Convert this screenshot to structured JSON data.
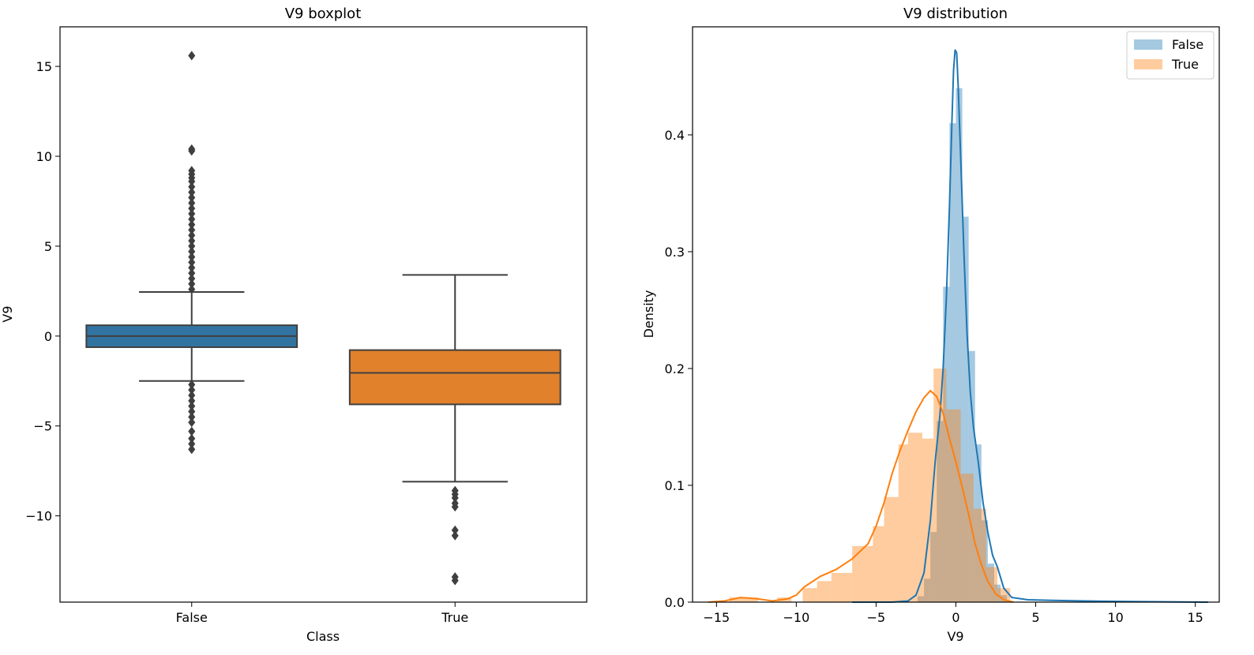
{
  "chart_data": [
    {
      "type": "box",
      "title": "V9 boxplot",
      "xlabel": "Class",
      "ylabel": "V9",
      "categories": [
        "False",
        "True"
      ],
      "ylim": [
        -14.8,
        17.2
      ],
      "yticks": [
        -10,
        -5,
        0,
        5,
        10,
        15
      ],
      "ytick_labels": [
        "−10",
        "−5",
        "0",
        "5",
        "10",
        "15"
      ],
      "colors": [
        "#3274a1",
        "#e1812c"
      ],
      "boxes": [
        {
          "name": "False",
          "q1": -0.62,
          "median": 0.0,
          "q3": 0.6,
          "whisker_low": -2.5,
          "whisker_high": 2.45,
          "outliers": [
            15.6,
            10.4,
            10.3,
            9.2,
            9.0,
            8.8,
            8.6,
            8.3,
            8.0,
            7.7,
            7.4,
            7.1,
            6.8,
            6.5,
            6.2,
            5.9,
            5.6,
            5.3,
            5.0,
            4.7,
            4.4,
            4.1,
            3.8,
            3.5,
            3.2,
            2.9,
            2.6,
            -2.7,
            -3.0,
            -3.3,
            -3.6,
            -3.9,
            -4.2,
            -4.5,
            -4.8,
            -5.3,
            -5.7,
            -6.0,
            -6.3
          ]
        },
        {
          "name": "True",
          "q1": -3.8,
          "median": -2.05,
          "q3": -0.78,
          "whisker_low": -8.1,
          "whisker_high": 3.4,
          "outliers": [
            -8.6,
            -8.8,
            -9.0,
            -9.3,
            -9.5,
            -10.8,
            -11.1,
            -13.4,
            -13.6
          ]
        }
      ]
    },
    {
      "type": "histogram+kde",
      "title": "V9 distribution",
      "xlabel": "V9",
      "ylabel": "Density",
      "xlim": [
        -16.5,
        16.5
      ],
      "ylim": [
        0,
        0.4925
      ],
      "xticks": [
        -15,
        -10,
        -5,
        0,
        5,
        10,
        15
      ],
      "xtick_labels": [
        "−15",
        "−10",
        "−5",
        "0",
        "5",
        "10",
        "15"
      ],
      "yticks": [
        0.0,
        0.1,
        0.2,
        0.3,
        0.4
      ],
      "ytick_labels": [
        "0.0",
        "0.1",
        "0.2",
        "0.3",
        "0.4"
      ],
      "legend_position": "top-right",
      "series": [
        {
          "name": "False",
          "color": "#1f77b4",
          "bins": [
            {
              "x0": -2.4,
              "x1": -2.0,
              "density": 0.005
            },
            {
              "x0": -2.0,
              "x1": -1.6,
              "density": 0.02
            },
            {
              "x0": -1.6,
              "x1": -1.2,
              "density": 0.06
            },
            {
              "x0": -1.2,
              "x1": -0.8,
              "density": 0.155
            },
            {
              "x0": -0.8,
              "x1": -0.4,
              "density": 0.27
            },
            {
              "x0": -0.4,
              "x1": 0.0,
              "density": 0.41
            },
            {
              "x0": 0.0,
              "x1": 0.4,
              "density": 0.44
            },
            {
              "x0": 0.4,
              "x1": 0.8,
              "density": 0.33
            },
            {
              "x0": 0.8,
              "x1": 1.2,
              "density": 0.215
            },
            {
              "x0": 1.2,
              "x1": 1.6,
              "density": 0.135
            },
            {
              "x0": 1.6,
              "x1": 2.0,
              "density": 0.07
            },
            {
              "x0": 2.0,
              "x1": 2.4,
              "density": 0.033
            },
            {
              "x0": 2.4,
              "x1": 2.8,
              "density": 0.015
            },
            {
              "x0": 2.8,
              "x1": 3.2,
              "density": 0.006
            }
          ],
          "kde": [
            [
              -6.5,
              0.0
            ],
            [
              -4.0,
              0.0
            ],
            [
              -3.0,
              0.001
            ],
            [
              -2.5,
              0.006
            ],
            [
              -2.0,
              0.025
            ],
            [
              -1.6,
              0.07
            ],
            [
              -1.3,
              0.12
            ],
            [
              -1.0,
              0.16
            ],
            [
              -0.8,
              0.2
            ],
            [
              -0.6,
              0.26
            ],
            [
              -0.4,
              0.34
            ],
            [
              -0.25,
              0.41
            ],
            [
              -0.15,
              0.455
            ],
            [
              -0.05,
              0.473
            ],
            [
              0.05,
              0.47
            ],
            [
              0.15,
              0.44
            ],
            [
              0.3,
              0.38
            ],
            [
              0.5,
              0.3
            ],
            [
              0.7,
              0.23
            ],
            [
              0.9,
              0.18
            ],
            [
              1.1,
              0.15
            ],
            [
              1.4,
              0.12
            ],
            [
              1.7,
              0.085
            ],
            [
              2.0,
              0.06
            ],
            [
              2.3,
              0.04
            ],
            [
              2.6,
              0.03
            ],
            [
              3.0,
              0.012
            ],
            [
              3.5,
              0.004
            ],
            [
              4.5,
              0.002
            ],
            [
              6.0,
              0.0015
            ],
            [
              8.0,
              0.001
            ],
            [
              11.0,
              0.0005
            ],
            [
              15.8,
              0.0
            ]
          ]
        },
        {
          "name": "True",
          "color": "#ff7f0e",
          "bins": [
            {
              "x0": -14.2,
              "x1": -12.4,
              "density": 0.004
            },
            {
              "x0": -11.2,
              "x1": -10.3,
              "density": 0.004
            },
            {
              "x0": -9.6,
              "x1": -8.7,
              "density": 0.012
            },
            {
              "x0": -8.7,
              "x1": -7.8,
              "density": 0.018
            },
            {
              "x0": -7.8,
              "x1": -6.5,
              "density": 0.025
            },
            {
              "x0": -6.5,
              "x1": -5.2,
              "density": 0.048
            },
            {
              "x0": -5.2,
              "x1": -4.5,
              "density": 0.065
            },
            {
              "x0": -4.5,
              "x1": -3.6,
              "density": 0.09
            },
            {
              "x0": -3.6,
              "x1": -3.0,
              "density": 0.135
            },
            {
              "x0": -3.0,
              "x1": -2.1,
              "density": 0.145
            },
            {
              "x0": -2.1,
              "x1": -1.4,
              "density": 0.14
            },
            {
              "x0": -1.4,
              "x1": -0.6,
              "density": 0.2
            },
            {
              "x0": -0.6,
              "x1": 0.3,
              "density": 0.165
            },
            {
              "x0": 0.3,
              "x1": 1.1,
              "density": 0.11
            },
            {
              "x0": 1.1,
              "x1": 1.9,
              "density": 0.08
            },
            {
              "x0": 1.9,
              "x1": 2.6,
              "density": 0.03
            },
            {
              "x0": 2.6,
              "x1": 3.4,
              "density": 0.012
            }
          ],
          "kde": [
            [
              -15.5,
              0.0
            ],
            [
              -14.5,
              0.001
            ],
            [
              -13.5,
              0.004
            ],
            [
              -12.5,
              0.003
            ],
            [
              -11.5,
              0.001
            ],
            [
              -10.5,
              0.003
            ],
            [
              -10.0,
              0.006
            ],
            [
              -9.5,
              0.013
            ],
            [
              -8.5,
              0.022
            ],
            [
              -7.5,
              0.028
            ],
            [
              -6.5,
              0.037
            ],
            [
              -5.5,
              0.05
            ],
            [
              -5.0,
              0.065
            ],
            [
              -4.5,
              0.085
            ],
            [
              -4.0,
              0.11
            ],
            [
              -3.5,
              0.13
            ],
            [
              -3.0,
              0.147
            ],
            [
              -2.5,
              0.163
            ],
            [
              -2.0,
              0.175
            ],
            [
              -1.6,
              0.181
            ],
            [
              -1.2,
              0.176
            ],
            [
              -0.8,
              0.162
            ],
            [
              -0.4,
              0.14
            ],
            [
              0.0,
              0.12
            ],
            [
              0.4,
              0.098
            ],
            [
              0.8,
              0.075
            ],
            [
              1.2,
              0.05
            ],
            [
              1.6,
              0.032
            ],
            [
              2.0,
              0.018
            ],
            [
              2.5,
              0.007
            ],
            [
              3.0,
              0.002
            ],
            [
              3.6,
              0.0
            ]
          ]
        }
      ]
    }
  ]
}
